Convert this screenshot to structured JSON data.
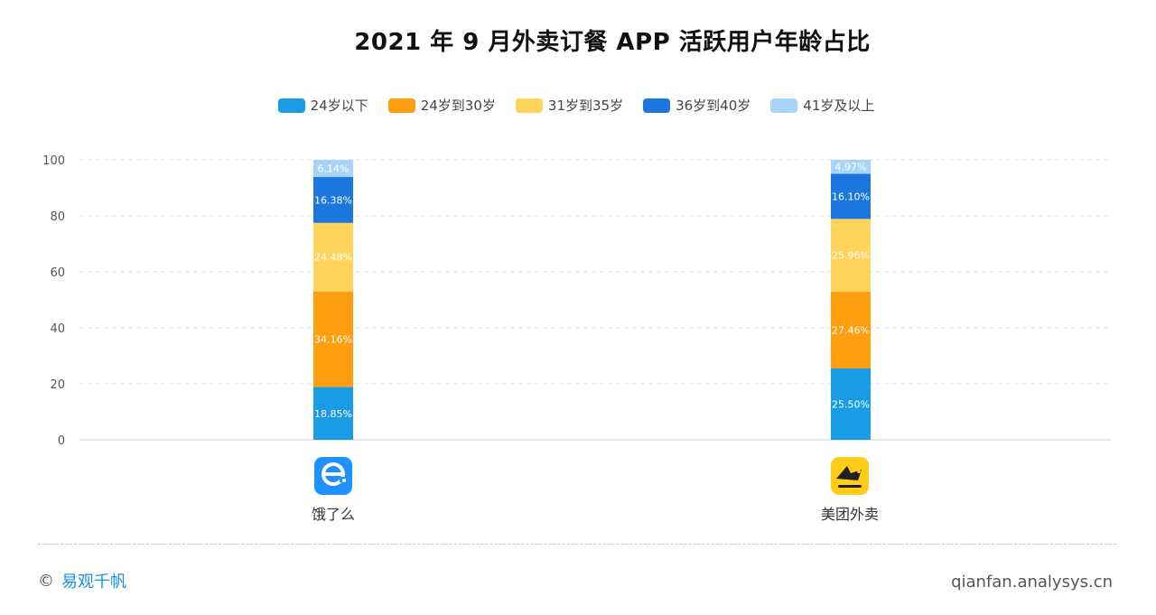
{
  "title": "2021 年 9 月外卖订餐 APP 活跃用户年龄占比",
  "footer": {
    "brand": "易观千帆",
    "url": "qianfan.analysys.cn"
  },
  "apps": [
    {
      "name": "饿了么",
      "icon": "eleme-logo-icon",
      "color": "#1e90ff"
    },
    {
      "name": "美团外卖",
      "icon": "meituan-waimai-logo-icon",
      "color": "#ffcc1a"
    }
  ],
  "chart_data": {
    "type": "bar",
    "stacked": true,
    "categories": [
      "饿了么",
      "美团外卖"
    ],
    "ylim": [
      0,
      100
    ],
    "yticks": [
      0,
      20,
      40,
      60,
      80,
      100
    ],
    "grid": true,
    "legend_position": "top-center",
    "series": [
      {
        "name": "24岁以下",
        "color": "#1a9be6",
        "values": [
          18.85,
          25.5
        ],
        "labels": [
          "18.85%",
          "25.50%"
        ]
      },
      {
        "name": "24岁到30岁",
        "color": "#ff9f0f",
        "values": [
          34.16,
          27.46
        ],
        "labels": [
          "34.16%",
          "27.46%"
        ]
      },
      {
        "name": "31岁到35岁",
        "color": "#ffd45a",
        "values": [
          24.48,
          25.96
        ],
        "labels": [
          "24.48%",
          "25.96%"
        ]
      },
      {
        "name": "36岁到40岁",
        "color": "#1b77dd",
        "values": [
          16.38,
          16.1
        ],
        "labels": [
          "16.38%",
          "16.10%"
        ]
      },
      {
        "name": "41岁及以上",
        "color": "#a9d4fa",
        "values": [
          6.14,
          4.97
        ],
        "labels": [
          "6.14%",
          "4.97%"
        ]
      }
    ]
  }
}
